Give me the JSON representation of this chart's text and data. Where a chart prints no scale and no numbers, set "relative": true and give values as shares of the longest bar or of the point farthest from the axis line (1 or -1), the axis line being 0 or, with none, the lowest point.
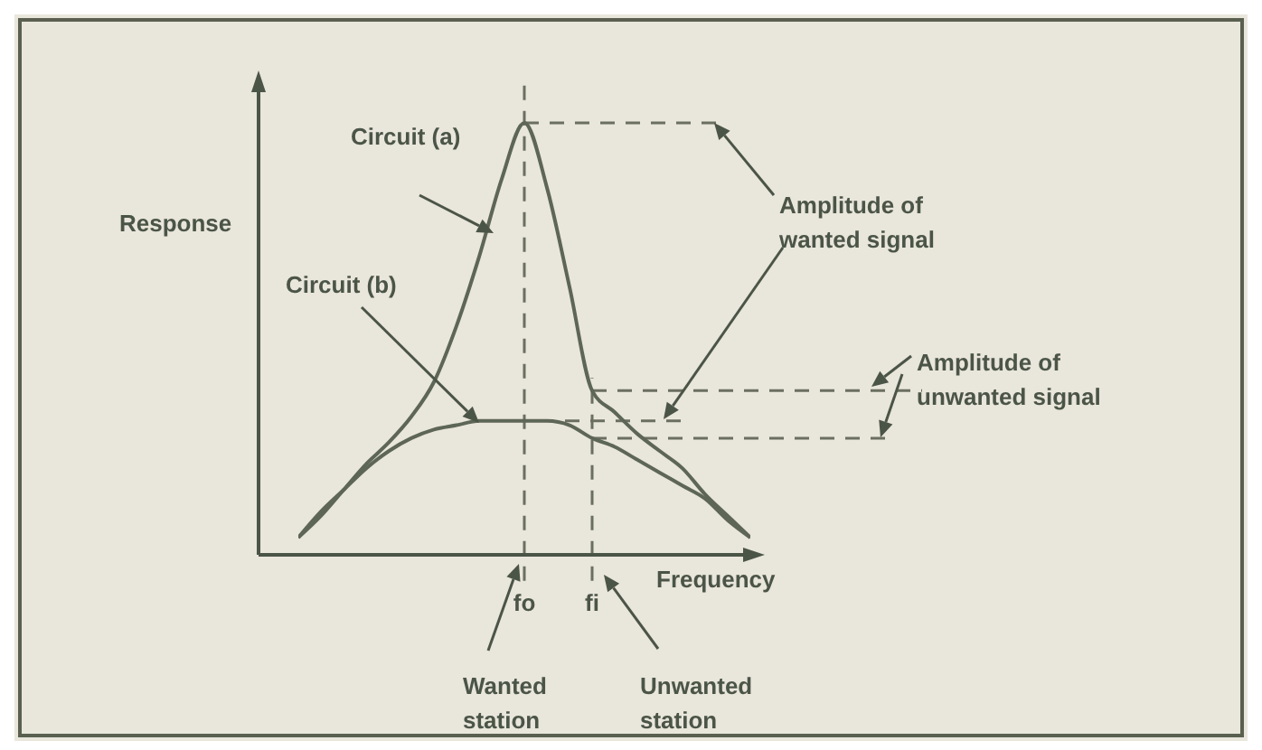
{
  "chart_data": {
    "type": "line",
    "relative": true,
    "xlabel": "Frequency",
    "ylabel": "Response",
    "categories": [
      null,
      null,
      null,
      null,
      null,
      null,
      null,
      null,
      null,
      null,
      "fo",
      null,
      null,
      "fi",
      null,
      null,
      null,
      null,
      null,
      null,
      null
    ],
    "series": [
      {
        "name": "Circuit (a)",
        "color": "#5d6657",
        "values": [
          0.04,
          0.09,
          0.15,
          0.21,
          0.26,
          0.32,
          0.4,
          0.53,
          0.69,
          0.87,
          1,
          0.85,
          0.62,
          0.38,
          0.33,
          0.28,
          0.24,
          0.2,
          0.14,
          0.09,
          0.04
        ]
      },
      {
        "name": "Circuit (b)",
        "color": "#5d6657",
        "values": [
          0.04,
          0.1,
          0.15,
          0.2,
          0.24,
          0.27,
          0.29,
          0.3,
          0.31,
          0.31,
          0.31,
          0.31,
          0.3,
          0.27,
          0.25,
          0.22,
          0.19,
          0.16,
          0.13,
          0.08,
          0.04
        ]
      }
    ],
    "ref_lines": [
      {
        "axis": "x",
        "value": "fo",
        "color": "#6b6f60",
        "line_style": "dashed"
      },
      {
        "axis": "x",
        "value": "fi",
        "color": "#6b6f60",
        "line_style": "dashed"
      },
      {
        "axis": "y",
        "value": 1,
        "color": "#6b6f60",
        "line_style": "dashed"
      },
      {
        "axis": "y",
        "value": 0.38,
        "color": "#6b6f60",
        "line_style": "dashed"
      },
      {
        "axis": "y",
        "value": 0.31,
        "color": "#6b6f60",
        "line_style": "dashed"
      },
      {
        "axis": "y",
        "value": 0.27,
        "color": "#6b6f60",
        "line_style": "dashed"
      }
    ],
    "annotations": [
      "Amplitude of wanted signal",
      "Amplitude of unwanted signal",
      "Wanted station",
      "Unwanted station"
    ]
  }
}
